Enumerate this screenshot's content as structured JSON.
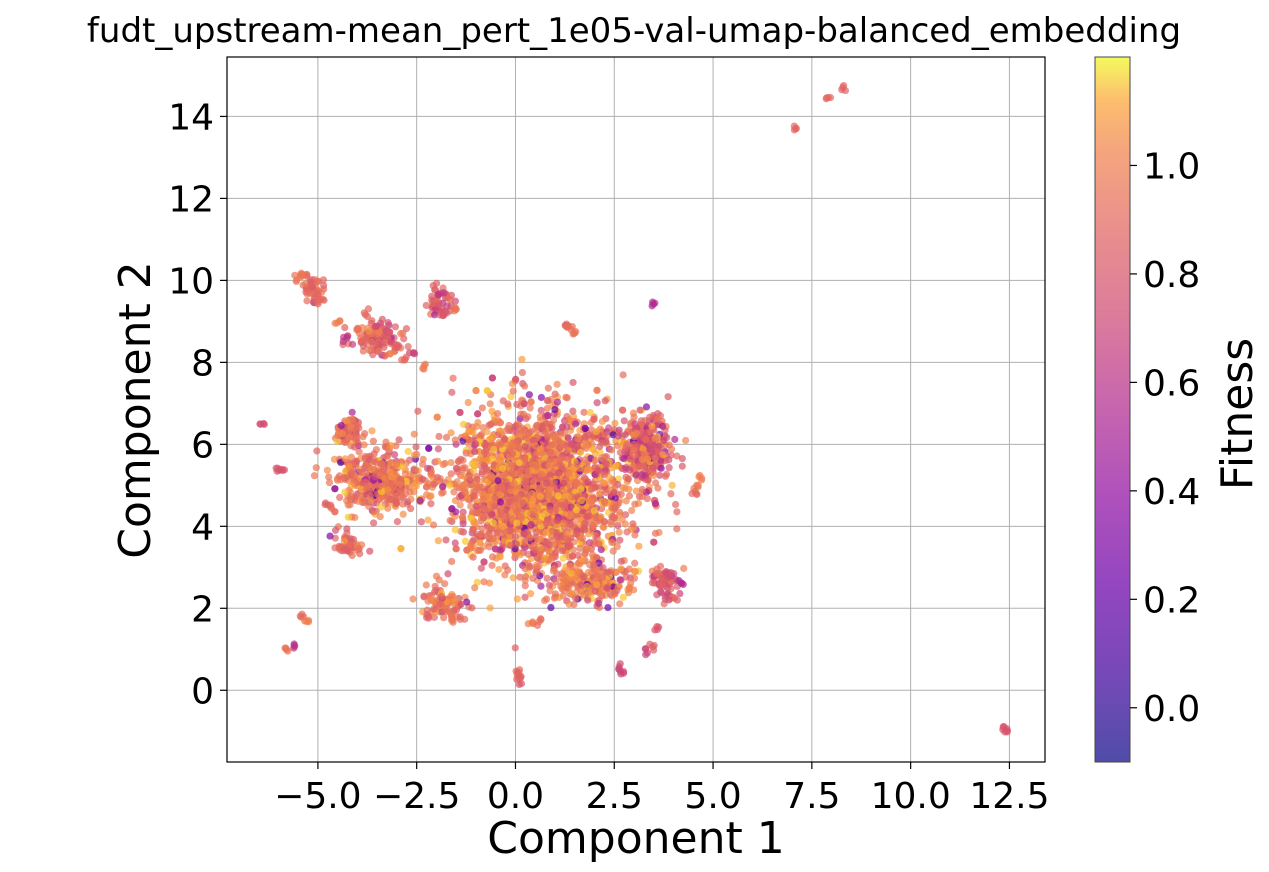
{
  "chart_data": {
    "type": "scatter",
    "title": "fudt_upstream-mean_pert_1e05-val-umap-balanced_embedding",
    "xlabel": "Component 1",
    "ylabel": "Component 2",
    "xlim": [
      -7.3,
      13.4
    ],
    "ylim": [
      -1.75,
      15.45
    ],
    "xticks": [
      -5.0,
      -2.5,
      0.0,
      2.5,
      5.0,
      7.5,
      10.0,
      12.5
    ],
    "xtick_labels": [
      "−5.0",
      "−2.5",
      "0.0",
      "2.5",
      "5.0",
      "7.5",
      "10.0",
      "12.5"
    ],
    "yticks": [
      0,
      2,
      4,
      6,
      8,
      10,
      12,
      14
    ],
    "ytick_labels": [
      "0",
      "2",
      "4",
      "6",
      "8",
      "10",
      "12",
      "14"
    ],
    "grid": true,
    "colormap": "plasma",
    "colorbar": {
      "label": "Fitness",
      "range": [
        -0.1,
        1.2
      ],
      "ticks": [
        0.0,
        0.2,
        0.4,
        0.6,
        0.8,
        1.0
      ],
      "tick_labels": [
        "0.0",
        "0.2",
        "0.4",
        "0.6",
        "0.8",
        "1.0"
      ]
    },
    "point_alpha": 0.7,
    "points": [
      {
        "x": -5.3,
        "y": 10.1,
        "c": 0.92
      },
      {
        "x": -5.0,
        "y": 9.6,
        "c": 0.88
      },
      {
        "x": -4.9,
        "y": 9.5,
        "c": 0.9
      },
      {
        "x": -5.5,
        "y": 10.05,
        "c": 0.95
      },
      {
        "x": -5.2,
        "y": 9.9,
        "c": 0.85
      },
      {
        "x": -5.4,
        "y": 10.15,
        "c": 0.97
      },
      {
        "x": -4.5,
        "y": 9.0,
        "c": 1.0
      },
      {
        "x": -3.8,
        "y": 9.2,
        "c": 0.9
      },
      {
        "x": -3.5,
        "y": 8.9,
        "c": 0.75
      },
      {
        "x": -3.2,
        "y": 8.7,
        "c": 0.8
      },
      {
        "x": -4.0,
        "y": 8.8,
        "c": 0.95
      },
      {
        "x": -4.3,
        "y": 8.6,
        "c": 0.6
      },
      {
        "x": -3.0,
        "y": 8.4,
        "c": 0.85
      },
      {
        "x": -2.6,
        "y": 8.2,
        "c": 0.7
      },
      {
        "x": -2.3,
        "y": 7.9,
        "c": 0.98
      },
      {
        "x": -3.6,
        "y": 8.5,
        "c": 0.88
      },
      {
        "x": -2.8,
        "y": 8.1,
        "c": 0.9
      },
      {
        "x": -2.0,
        "y": 9.8,
        "c": 0.85
      },
      {
        "x": -1.7,
        "y": 9.6,
        "c": 0.9
      },
      {
        "x": -1.5,
        "y": 9.3,
        "c": 0.95
      },
      {
        "x": -1.8,
        "y": 9.2,
        "c": 0.8
      },
      {
        "x": -1.9,
        "y": 9.7,
        "c": 0.62
      },
      {
        "x": -6.4,
        "y": 6.5,
        "c": 0.75
      },
      {
        "x": -6.0,
        "y": 5.4,
        "c": 0.8
      },
      {
        "x": -5.9,
        "y": 5.35,
        "c": 0.78
      },
      {
        "x": -4.8,
        "y": 4.5,
        "c": 0.85
      },
      {
        "x": -4.6,
        "y": 4.4,
        "c": 0.92
      },
      {
        "x": -4.5,
        "y": 3.5,
        "c": 0.9
      },
      {
        "x": -4.3,
        "y": 3.4,
        "c": 0.85
      },
      {
        "x": -5.4,
        "y": 1.8,
        "c": 0.9
      },
      {
        "x": -5.3,
        "y": 1.7,
        "c": 1.0
      },
      {
        "x": -5.8,
        "y": 1.0,
        "c": 0.95
      },
      {
        "x": -5.6,
        "y": 1.1,
        "c": 0.6
      },
      {
        "x": 1.3,
        "y": 8.9,
        "c": 0.88
      },
      {
        "x": 1.4,
        "y": 8.8,
        "c": 0.92
      },
      {
        "x": 1.5,
        "y": 8.7,
        "c": 0.95
      },
      {
        "x": 3.5,
        "y": 9.45,
        "c": 0.55
      },
      {
        "x": 4.7,
        "y": 5.2,
        "c": 1.0
      },
      {
        "x": 4.6,
        "y": 5.0,
        "c": 0.98
      },
      {
        "x": 4.5,
        "y": 4.8,
        "c": 0.9
      },
      {
        "x": 3.9,
        "y": 2.8,
        "c": 0.75
      },
      {
        "x": 3.7,
        "y": 2.6,
        "c": 0.85
      },
      {
        "x": 4.2,
        "y": 2.6,
        "c": 0.55
      },
      {
        "x": 3.6,
        "y": 2.9,
        "c": 0.9
      },
      {
        "x": 3.3,
        "y": 1.0,
        "c": 0.7
      },
      {
        "x": 3.5,
        "y": 1.0,
        "c": 0.85
      },
      {
        "x": 2.6,
        "y": 0.5,
        "c": 0.75
      },
      {
        "x": 2.7,
        "y": 0.45,
        "c": 0.7
      },
      {
        "x": 0.05,
        "y": 0.5,
        "c": 0.9
      },
      {
        "x": 0.1,
        "y": 0.25,
        "c": 0.8
      },
      {
        "x": 0.08,
        "y": 0.35,
        "c": 0.88
      },
      {
        "x": 0.4,
        "y": 1.6,
        "c": 1.0
      },
      {
        "x": 0.6,
        "y": 1.7,
        "c": 0.92
      },
      {
        "x": -1.6,
        "y": 1.8,
        "c": 0.95
      },
      {
        "x": -1.4,
        "y": 1.75,
        "c": 0.9
      },
      {
        "x": -2.2,
        "y": 1.8,
        "c": 0.85
      },
      {
        "x": 3.6,
        "y": 1.5,
        "c": 0.8
      },
      {
        "x": 7.1,
        "y": 13.7,
        "c": 0.88
      },
      {
        "x": 7.9,
        "y": 14.4,
        "c": 0.9
      },
      {
        "x": 8.3,
        "y": 14.7,
        "c": 0.87
      },
      {
        "x": 12.4,
        "y": -0.9,
        "c": 0.82
      },
      {
        "x": 12.45,
        "y": -0.95,
        "c": 0.78
      }
    ],
    "cluster_regions": [
      {
        "cx": 0.6,
        "cy": 4.9,
        "sx": 1.7,
        "sy": 1.55,
        "n": 2600,
        "c_mean": 0.95,
        "c_spread": 0.28
      },
      {
        "cx": 3.3,
        "cy": 5.9,
        "sx": 0.45,
        "sy": 0.7,
        "n": 320,
        "c_mean": 0.85,
        "c_spread": 0.3
      },
      {
        "cx": -3.4,
        "cy": 5.1,
        "sx": 0.9,
        "sy": 0.6,
        "n": 420,
        "c_mean": 0.95,
        "c_spread": 0.25
      },
      {
        "cx": -4.2,
        "cy": 6.3,
        "sx": 0.25,
        "sy": 0.35,
        "n": 90,
        "c_mean": 0.92,
        "c_spread": 0.2
      },
      {
        "cx": -3.5,
        "cy": 8.6,
        "sx": 0.55,
        "sy": 0.3,
        "n": 110,
        "c_mean": 0.88,
        "c_spread": 0.2
      },
      {
        "cx": -1.9,
        "cy": 9.4,
        "sx": 0.25,
        "sy": 0.25,
        "n": 40,
        "c_mean": 0.85,
        "c_spread": 0.2
      },
      {
        "cx": -5.1,
        "cy": 9.8,
        "sx": 0.25,
        "sy": 0.25,
        "n": 35,
        "c_mean": 0.92,
        "c_spread": 0.1
      },
      {
        "cx": -1.8,
        "cy": 2.2,
        "sx": 0.5,
        "sy": 0.35,
        "n": 80,
        "c_mean": 0.92,
        "c_spread": 0.2
      },
      {
        "cx": 3.8,
        "cy": 2.6,
        "sx": 0.3,
        "sy": 0.3,
        "n": 60,
        "c_mean": 0.8,
        "c_spread": 0.2
      },
      {
        "cx": 1.9,
        "cy": 2.6,
        "sx": 0.9,
        "sy": 0.4,
        "n": 180,
        "c_mean": 0.97,
        "c_spread": 0.2
      },
      {
        "cx": -4.2,
        "cy": 3.6,
        "sx": 0.3,
        "sy": 0.25,
        "n": 40,
        "c_mean": 0.9,
        "c_spread": 0.15
      }
    ]
  }
}
